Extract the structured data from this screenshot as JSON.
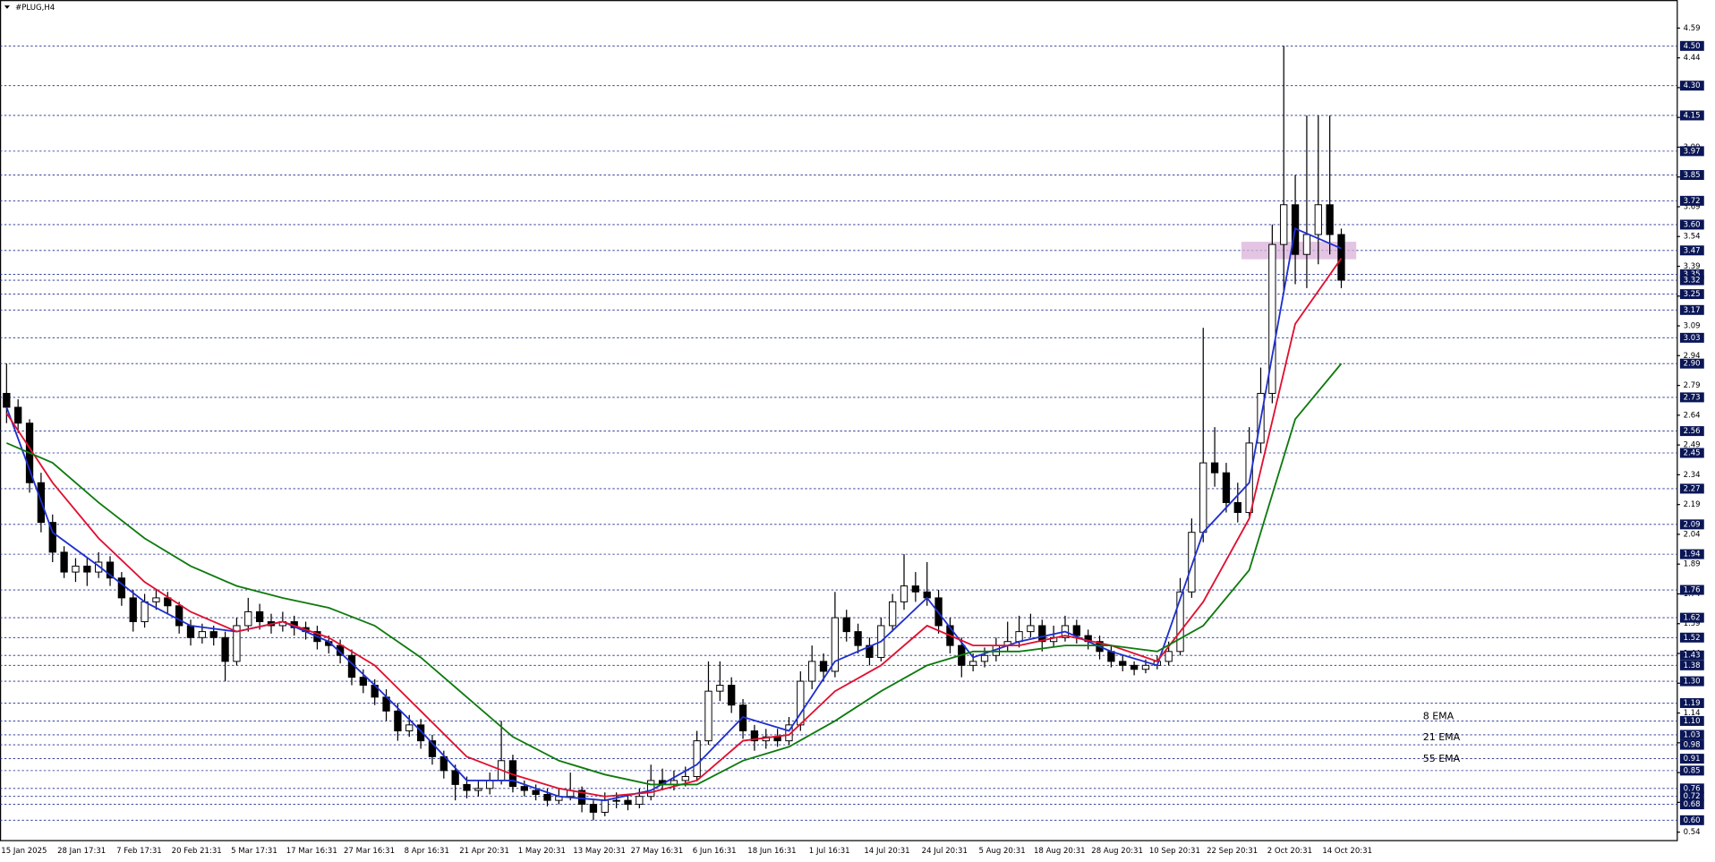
{
  "chart_data": {
    "type": "candlestick",
    "title": "#PLUG,H4",
    "ylim": [
      0.5,
      4.654
    ],
    "yticks": [
      0.54,
      0.69,
      0.84,
      0.99,
      1.14,
      1.29,
      1.44,
      1.59,
      1.74,
      1.89,
      2.04,
      2.19,
      2.34,
      2.49,
      2.64,
      2.79,
      2.94,
      3.09,
      3.24,
      3.39,
      3.54,
      3.69,
      3.84,
      3.99,
      4.14,
      4.29,
      4.44,
      4.59
    ],
    "levels": [
      {
        "value": 4.5,
        "label": "4.50"
      },
      {
        "value": 4.3,
        "label": "4.30"
      },
      4.15,
      3.97,
      3.85,
      3.72,
      {
        "value": 3.6,
        "label": "3.60"
      },
      3.47,
      3.35,
      3.32,
      3.25,
      3.17,
      3.03,
      {
        "value": 2.9,
        "label": "2.90"
      },
      2.73,
      2.56,
      2.45,
      2.27,
      2.09,
      1.94,
      1.76,
      1.62,
      1.52,
      1.43,
      1.38,
      {
        "value": 1.3,
        "label": "1.30"
      },
      1.19,
      {
        "value": 1.1,
        "label": "1.10"
      },
      1.03,
      0.98,
      0.91,
      0.85,
      0.76,
      0.72,
      0.68,
      {
        "value": 0.6,
        "label": "0.60"
      }
    ],
    "level_color": "#1c2a8c",
    "x_labels": [
      "15 Jan 2025",
      "28 Jan 17:31",
      "7 Feb 17:31",
      "20 Feb 21:31",
      "5 Mar 17:31",
      "17 Mar 16:31",
      "27 Mar 16:31",
      "8 Apr 16:31",
      "21 Apr 20:31",
      "1 May 20:31",
      "13 May 20:31",
      "27 May 16:31",
      "6 Jun 16:31",
      "18 Jun 16:31",
      "1 Jul 16:31",
      "14 Jul 20:31",
      "24 Jul 20:31",
      "5 Aug 20:31",
      "18 Aug 20:31",
      "28 Aug 20:31",
      "10 Sep 20:31",
      "22 Sep 20:31",
      "2 Oct 20:31",
      "14 Oct 20:31"
    ],
    "candles": [
      [
        2.75,
        2.9,
        2.6,
        2.68
      ],
      [
        2.68,
        2.72,
        2.55,
        2.6
      ],
      [
        2.6,
        2.62,
        2.25,
        2.3
      ],
      [
        2.3,
        2.35,
        2.05,
        2.1
      ],
      [
        2.1,
        2.14,
        1.9,
        1.95
      ],
      [
        1.95,
        1.98,
        1.82,
        1.85
      ],
      [
        1.85,
        1.92,
        1.8,
        1.88
      ],
      [
        1.88,
        1.92,
        1.78,
        1.85
      ],
      [
        1.85,
        1.95,
        1.82,
        1.9
      ],
      [
        1.9,
        1.93,
        1.78,
        1.82
      ],
      [
        1.82,
        1.85,
        1.68,
        1.72
      ],
      [
        1.72,
        1.76,
        1.55,
        1.6
      ],
      [
        1.6,
        1.74,
        1.57,
        1.7
      ],
      [
        1.7,
        1.76,
        1.66,
        1.72
      ],
      [
        1.72,
        1.75,
        1.64,
        1.68
      ],
      [
        1.68,
        1.7,
        1.54,
        1.58
      ],
      [
        1.58,
        1.61,
        1.48,
        1.52
      ],
      [
        1.52,
        1.59,
        1.49,
        1.55
      ],
      [
        1.55,
        1.58,
        1.48,
        1.52
      ],
      [
        1.52,
        1.55,
        1.3,
        1.4
      ],
      [
        1.4,
        1.62,
        1.38,
        1.58
      ],
      [
        1.58,
        1.72,
        1.55,
        1.65
      ],
      [
        1.65,
        1.69,
        1.56,
        1.6
      ],
      [
        1.6,
        1.64,
        1.54,
        1.58
      ],
      [
        1.58,
        1.65,
        1.55,
        1.6
      ],
      [
        1.6,
        1.63,
        1.53,
        1.57
      ],
      [
        1.57,
        1.6,
        1.51,
        1.55
      ],
      [
        1.55,
        1.58,
        1.46,
        1.5
      ],
      [
        1.5,
        1.53,
        1.44,
        1.48
      ],
      [
        1.48,
        1.51,
        1.39,
        1.43
      ],
      [
        1.43,
        1.46,
        1.28,
        1.32
      ],
      [
        1.32,
        1.36,
        1.24,
        1.28
      ],
      [
        1.28,
        1.31,
        1.18,
        1.22
      ],
      [
        1.22,
        1.26,
        1.1,
        1.15
      ],
      [
        1.15,
        1.19,
        1.0,
        1.05
      ],
      [
        1.05,
        1.13,
        1.02,
        1.08
      ],
      [
        1.08,
        1.11,
        0.96,
        1.0
      ],
      [
        1.0,
        1.03,
        0.88,
        0.92
      ],
      [
        0.92,
        0.95,
        0.81,
        0.85
      ],
      [
        0.85,
        0.88,
        0.7,
        0.78
      ],
      [
        0.78,
        0.82,
        0.71,
        0.75
      ],
      [
        0.75,
        0.8,
        0.72,
        0.76
      ],
      [
        0.76,
        0.84,
        0.73,
        0.8
      ],
      [
        0.8,
        1.1,
        0.78,
        0.9
      ],
      [
        0.9,
        0.93,
        0.74,
        0.77
      ],
      [
        0.77,
        0.8,
        0.72,
        0.75
      ],
      [
        0.75,
        0.78,
        0.7,
        0.73
      ],
      [
        0.73,
        0.76,
        0.67,
        0.7
      ],
      [
        0.7,
        0.76,
        0.68,
        0.72
      ],
      [
        0.72,
        0.84,
        0.7,
        0.75
      ],
      [
        0.75,
        0.77,
        0.64,
        0.68
      ],
      [
        0.68,
        0.7,
        0.6,
        0.64
      ],
      [
        0.64,
        0.74,
        0.62,
        0.7
      ],
      [
        0.7,
        0.74,
        0.66,
        0.7
      ],
      [
        0.7,
        0.73,
        0.65,
        0.68
      ],
      [
        0.68,
        0.76,
        0.66,
        0.72
      ],
      [
        0.72,
        0.88,
        0.7,
        0.8
      ],
      [
        0.8,
        0.86,
        0.75,
        0.78
      ],
      [
        0.78,
        0.85,
        0.75,
        0.8
      ],
      [
        0.8,
        0.87,
        0.77,
        0.82
      ],
      [
        0.82,
        1.05,
        0.8,
        1.0
      ],
      [
        1.0,
        1.4,
        0.98,
        1.25
      ],
      [
        1.25,
        1.4,
        1.2,
        1.28
      ],
      [
        1.28,
        1.32,
        1.14,
        1.18
      ],
      [
        1.18,
        1.21,
        1.01,
        1.05
      ],
      [
        1.05,
        1.08,
        0.95,
        1.0
      ],
      [
        1.0,
        1.06,
        0.96,
        1.02
      ],
      [
        1.02,
        1.06,
        0.97,
        1.0
      ],
      [
        1.0,
        1.12,
        0.98,
        1.08
      ],
      [
        1.08,
        1.35,
        1.05,
        1.3
      ],
      [
        1.3,
        1.48,
        1.26,
        1.4
      ],
      [
        1.4,
        1.44,
        1.3,
        1.35
      ],
      [
        1.35,
        1.75,
        1.32,
        1.62
      ],
      [
        1.62,
        1.66,
        1.5,
        1.55
      ],
      [
        1.55,
        1.59,
        1.44,
        1.48
      ],
      [
        1.48,
        1.52,
        1.38,
        1.42
      ],
      [
        1.42,
        1.62,
        1.4,
        1.58
      ],
      [
        1.58,
        1.74,
        1.55,
        1.7
      ],
      [
        1.7,
        1.94,
        1.66,
        1.78
      ],
      [
        1.78,
        1.85,
        1.7,
        1.75
      ],
      [
        1.75,
        1.9,
        1.68,
        1.72
      ],
      [
        1.72,
        1.76,
        1.54,
        1.58
      ],
      [
        1.58,
        1.62,
        1.44,
        1.48
      ],
      [
        1.48,
        1.52,
        1.32,
        1.38
      ],
      [
        1.38,
        1.44,
        1.35,
        1.4
      ],
      [
        1.4,
        1.47,
        1.37,
        1.43
      ],
      [
        1.43,
        1.52,
        1.4,
        1.48
      ],
      [
        1.48,
        1.6,
        1.45,
        1.5
      ],
      [
        1.5,
        1.63,
        1.47,
        1.55
      ],
      [
        1.55,
        1.64,
        1.52,
        1.58
      ],
      [
        1.58,
        1.61,
        1.45,
        1.5
      ],
      [
        1.5,
        1.58,
        1.47,
        1.52
      ],
      [
        1.52,
        1.63,
        1.5,
        1.58
      ],
      [
        1.58,
        1.61,
        1.49,
        1.53
      ],
      [
        1.53,
        1.56,
        1.46,
        1.5
      ],
      [
        1.5,
        1.53,
        1.41,
        1.45
      ],
      [
        1.45,
        1.48,
        1.37,
        1.4
      ],
      [
        1.4,
        1.43,
        1.35,
        1.38
      ],
      [
        1.38,
        1.4,
        1.33,
        1.36
      ],
      [
        1.36,
        1.41,
        1.34,
        1.38
      ],
      [
        1.38,
        1.43,
        1.36,
        1.4
      ],
      [
        1.4,
        1.5,
        1.38,
        1.45
      ],
      [
        1.45,
        1.82,
        1.43,
        1.75
      ],
      [
        1.75,
        2.12,
        1.72,
        2.05
      ],
      [
        2.05,
        3.08,
        2.0,
        2.4
      ],
      [
        2.4,
        2.58,
        2.28,
        2.35
      ],
      [
        2.35,
        2.4,
        2.15,
        2.2
      ],
      [
        2.2,
        2.3,
        2.1,
        2.15
      ],
      [
        2.15,
        2.58,
        2.12,
        2.5
      ],
      [
        2.5,
        2.88,
        2.45,
        2.75
      ],
      [
        2.75,
        3.6,
        2.7,
        3.5
      ],
      [
        3.5,
        4.5,
        3.25,
        3.7
      ],
      [
        3.7,
        3.85,
        3.3,
        3.45
      ],
      [
        3.45,
        4.15,
        3.28,
        3.55
      ],
      [
        3.55,
        4.15,
        3.4,
        3.7
      ],
      [
        3.7,
        4.15,
        3.45,
        3.55
      ],
      [
        3.55,
        3.58,
        3.28,
        3.32
      ]
    ],
    "series": [
      {
        "name": "8 EMA",
        "color": "#1f2fd0",
        "x": [
          0,
          4,
          8,
          12,
          16,
          20,
          24,
          28,
          32,
          36,
          40,
          44,
          48,
          52,
          56,
          60,
          64,
          68,
          72,
          76,
          80,
          84,
          88,
          92,
          96,
          100,
          104,
          108,
          112,
          116
        ],
        "values": [
          2.68,
          2.05,
          1.88,
          1.7,
          1.58,
          1.55,
          1.6,
          1.5,
          1.28,
          1.05,
          0.8,
          0.8,
          0.72,
          0.7,
          0.75,
          0.88,
          1.12,
          1.05,
          1.4,
          1.5,
          1.72,
          1.42,
          1.5,
          1.55,
          1.45,
          1.38,
          2.05,
          2.3,
          3.58,
          3.48
        ]
      },
      {
        "name": "21 EMA",
        "color": "#e01030",
        "x": [
          0,
          4,
          8,
          12,
          16,
          20,
          24,
          28,
          32,
          36,
          40,
          44,
          48,
          52,
          56,
          60,
          64,
          68,
          72,
          76,
          80,
          84,
          88,
          92,
          96,
          100,
          104,
          108,
          112,
          116
        ],
        "values": [
          2.65,
          2.3,
          2.02,
          1.8,
          1.65,
          1.55,
          1.6,
          1.52,
          1.38,
          1.15,
          0.92,
          0.83,
          0.76,
          0.72,
          0.74,
          0.8,
          1.0,
          1.03,
          1.25,
          1.38,
          1.58,
          1.48,
          1.48,
          1.53,
          1.48,
          1.4,
          1.7,
          2.12,
          3.1,
          3.43
        ]
      },
      {
        "name": "55 EMA",
        "color": "#0e7a0e",
        "x": [
          0,
          4,
          8,
          12,
          16,
          20,
          24,
          28,
          32,
          36,
          40,
          44,
          48,
          52,
          56,
          60,
          64,
          68,
          72,
          76,
          80,
          84,
          88,
          92,
          96,
          100,
          104,
          108,
          112,
          116
        ],
        "values": [
          2.5,
          2.4,
          2.2,
          2.02,
          1.88,
          1.78,
          1.72,
          1.67,
          1.58,
          1.42,
          1.22,
          1.02,
          0.9,
          0.83,
          0.78,
          0.78,
          0.9,
          0.97,
          1.1,
          1.25,
          1.38,
          1.45,
          1.45,
          1.48,
          1.48,
          1.45,
          1.58,
          1.86,
          2.62,
          2.9
        ]
      }
    ]
  }
}
